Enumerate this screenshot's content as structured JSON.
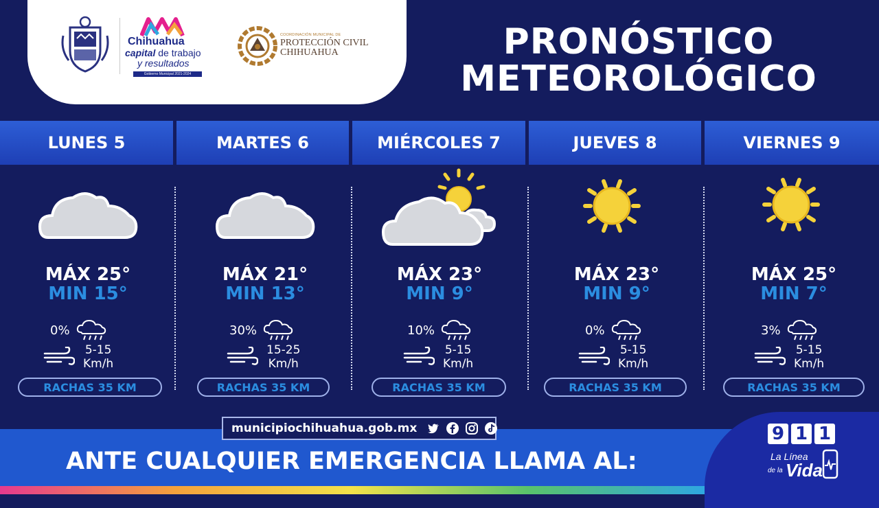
{
  "header": {
    "title_line1": "PRONÓSTICO",
    "title_line2": "METEOROLÓGICO",
    "chihuahua_logo": {
      "name": "Chihuahua",
      "line2_bold": "capital",
      "line2_rest": " de trabajo",
      "line3": "y resultados",
      "bar_text": "Gobierno Municipal 2021-2024"
    },
    "proteccion_civil": {
      "small": "COORDINACIÓN MUNICIPAL DE",
      "line1": "PROTECCIÓN CIVIL",
      "line2": "CHIHUAHUA"
    }
  },
  "days": [
    {
      "label": "LUNES 5",
      "icon": "cloud",
      "max": "MÁX 25°",
      "min": "MIN 15°",
      "precip": "0%",
      "wind1": "5-15",
      "wind2": "Km/h",
      "gust": "RACHAS 35 KM"
    },
    {
      "label": "MARTES 6",
      "icon": "cloud",
      "max": "MÁX 21°",
      "min": "MIN 13°",
      "precip": "30%",
      "wind1": "15-25",
      "wind2": "Km/h",
      "gust": "RACHAS 35 KM"
    },
    {
      "label": "MIÉRCOLES 7",
      "icon": "partly-cloudy",
      "max": "MÁX 23°",
      "min": "MIN 9°",
      "precip": "10%",
      "wind1": "5-15",
      "wind2": "Km/h",
      "gust": "RACHAS 35 KM"
    },
    {
      "label": "JUEVES 8",
      "icon": "sun",
      "max": "MÁX 23°",
      "min": "MIN 9°",
      "precip": "0%",
      "wind1": "5-15",
      "wind2": "Km/h",
      "gust": "RACHAS 35 KM"
    },
    {
      "label": "VIERNES 9",
      "icon": "sun",
      "max": "MÁX 25°",
      "min": "MIN 7°",
      "precip": "3%",
      "wind1": "5-15",
      "wind2": "Km/h",
      "gust": "RACHAS 35 KM"
    }
  ],
  "footer": {
    "url": "municipiochihuahua.gob.mx",
    "social_icons": [
      "twitter-icon",
      "facebook-icon",
      "instagram-icon",
      "tiktok-icon"
    ],
    "emergency_text": "ANTE CUALQUIER EMERGENCIA LLAMA AL:",
    "badge": {
      "digits": [
        "9",
        "1",
        "1"
      ],
      "la": "La Línea",
      "de": "de la",
      "vida": "Vida"
    }
  },
  "colors": {
    "background": "#141c5e",
    "accent_blue": "#2b8de0",
    "day_bar": "#2d5ed6",
    "bottom_band": "#2058cf"
  }
}
